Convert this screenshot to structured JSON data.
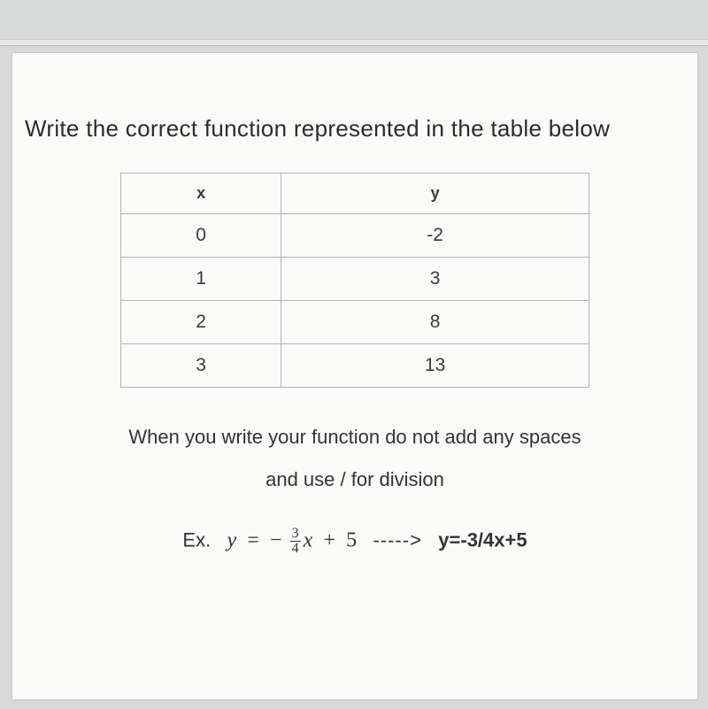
{
  "question": "Write the correct function represented in the table below",
  "table": {
    "columns": [
      "x",
      "y"
    ],
    "rows": [
      [
        "0",
        "-2"
      ],
      [
        "1",
        "3"
      ],
      [
        "2",
        "8"
      ],
      [
        "3",
        "13"
      ]
    ]
  },
  "hint_line1": "When you write your function do not add any spaces",
  "hint_line2": "and use / for division",
  "example": {
    "prefix": "Ex.",
    "lhs_y": "y",
    "eq": "=",
    "minus": "−",
    "frac_num": "3",
    "frac_den": "4",
    "x": "x",
    "plus": "+",
    "const": "5",
    "arrow": "----->",
    "rhs": "y=-3/4x+5"
  },
  "colors": {
    "page_bg": "#fbfbfa",
    "outer_bg": "#d8dad9",
    "border": "#b2b5b3",
    "text": "#2c2c2c"
  }
}
